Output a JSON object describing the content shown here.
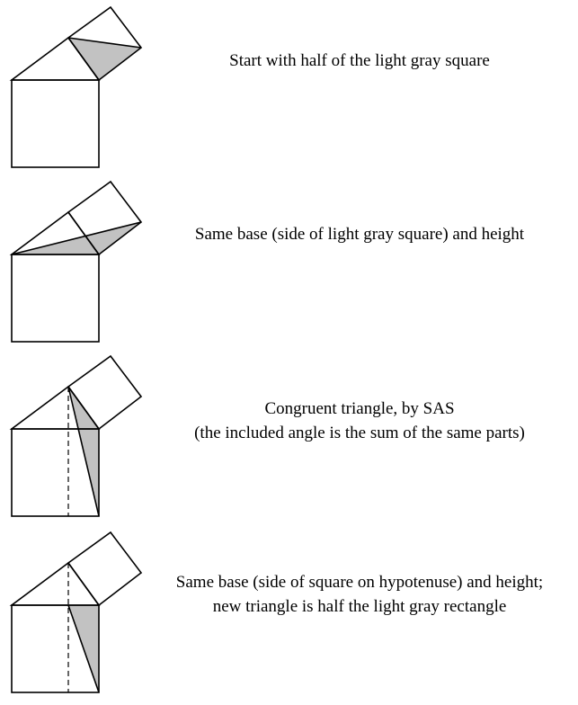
{
  "panels": [
    {
      "caption_lines": [
        "Start with half of the light gray square"
      ],
      "fill_color": "#c2c2c2"
    },
    {
      "caption_lines": [
        "Same base (side of light gray square) and height"
      ],
      "fill_color": "#c2c2c2"
    },
    {
      "caption_lines": [
        "Congruent triangle, by SAS",
        "(the included angle is the sum of the same parts)"
      ],
      "fill_color": "#c2c2c2"
    },
    {
      "caption_lines": [
        "Same base (side of square on hypotenuse) and height;",
        "new triangle is half the light gray rectangle"
      ],
      "fill_color": "#c2c2c2"
    }
  ]
}
